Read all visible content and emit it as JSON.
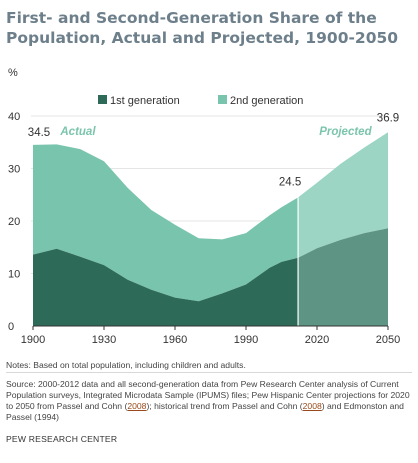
{
  "title": "First- and Second-Generation Share of the Population, Actual and Projected, 1900-2050",
  "notes": "Notes: Based on total population, including children and adults.",
  "source_parts": [
    "Source: 2000-2012 data and all second-generation data from Pew Research Center analysis of Current Population surveys, Integrated Microdata Sample (IPUMS) files; Pew Hispanic Center projections for 2020 to 2050 from Passel and Cohn (",
    "2008",
    "); historical trend from Passel and Cohn (",
    "2008",
    ") and Edmonston and Passel (1994)"
  ],
  "brand": "PEW RESEARCH CENTER",
  "colors": {
    "first_gen": "#2d6b58",
    "second_gen": "#79c4ad",
    "first_gen_projected": "#5d9483",
    "second_gen_projected": "#9cd5c3",
    "title": "#6d7f8b",
    "annotation": "#7cc5ad"
  },
  "chart_data": {
    "type": "area",
    "stacked": true,
    "yunit": "%",
    "ylim": [
      0,
      40
    ],
    "yticks": [
      0,
      10,
      20,
      30,
      40
    ],
    "xlim": [
      1900,
      2050
    ],
    "xticks": [
      1900,
      1930,
      1960,
      1990,
      2020,
      2050
    ],
    "projection_start": 2012,
    "x": [
      1900,
      1910,
      1920,
      1930,
      1940,
      1950,
      1960,
      1970,
      1980,
      1990,
      2000,
      2005,
      2012,
      2020,
      2030,
      2040,
      2050
    ],
    "series": [
      {
        "name": "1st generation",
        "values": [
          13.6,
          14.7,
          13.2,
          11.6,
          8.8,
          6.9,
          5.4,
          4.7,
          6.2,
          7.9,
          11.1,
          12.2,
          13.0,
          14.8,
          16.4,
          17.7,
          18.6
        ]
      },
      {
        "name": "2nd generation",
        "values": [
          20.9,
          19.9,
          20.5,
          19.8,
          17.5,
          15.2,
          13.9,
          12.0,
          10.3,
          9.8,
          10.0,
          10.4,
          11.5,
          12.5,
          14.5,
          16.3,
          18.3
        ]
      }
    ],
    "labels": [
      {
        "text": "34.5",
        "x": 1900
      },
      {
        "text": "24.5",
        "x": 2012
      },
      {
        "text": "36.9",
        "x": 2050
      }
    ],
    "annotations": [
      "Actual",
      "Projected"
    ],
    "legend": "top"
  }
}
